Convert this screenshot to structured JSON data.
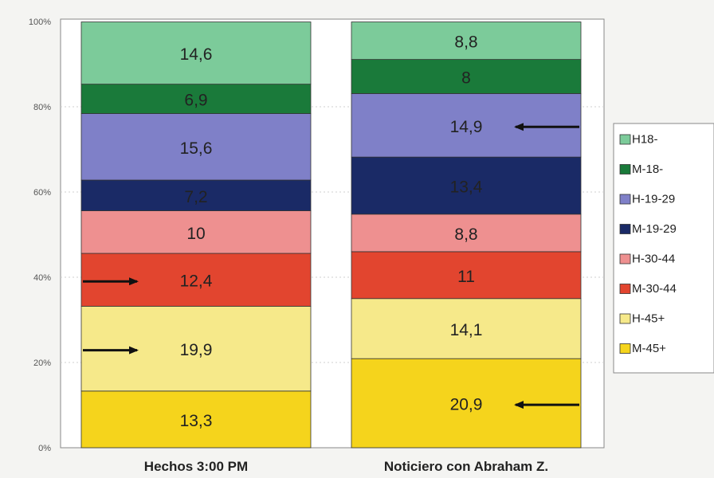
{
  "chart_data": {
    "type": "bar",
    "stacked": true,
    "percent": true,
    "categories": [
      "Hechos 3:00 PM",
      "Noticiero con Abraham Z."
    ],
    "ylim": [
      0,
      100
    ],
    "yticks": [
      "0%",
      "20%",
      "40%",
      "60%",
      "80%",
      "100%"
    ],
    "legend_position": "right",
    "series": [
      {
        "name": "M-45+",
        "color": "#f5d41c",
        "values": [
          13.3,
          20.9
        ],
        "labels": [
          "13,3",
          "20,9"
        ]
      },
      {
        "name": "H-45+",
        "color": "#f6e98a",
        "values": [
          19.9,
          14.1
        ],
        "labels": [
          "19,9",
          "14,1"
        ]
      },
      {
        "name": "M-30-44",
        "color": "#e2452f",
        "values": [
          12.4,
          11
        ],
        "labels": [
          "12,4",
          "11"
        ]
      },
      {
        "name": "H-30-44",
        "color": "#ee9090",
        "values": [
          10,
          8.8
        ],
        "labels": [
          "10",
          "8,8"
        ]
      },
      {
        "name": "M-19-29",
        "color": "#1a2a66",
        "values": [
          7.2,
          13.4
        ],
        "labels": [
          "7,2",
          "13,4"
        ]
      },
      {
        "name": "H-19-29",
        "color": "#7f80c8",
        "values": [
          15.6,
          14.9
        ],
        "labels": [
          "15,6",
          "14,9"
        ]
      },
      {
        "name": "M-18-",
        "color": "#1a7a3a",
        "values": [
          6.9,
          8
        ],
        "labels": [
          "6,9",
          "8"
        ]
      },
      {
        "name": "H18-",
        "color": "#7ccb9a",
        "values": [
          14.6,
          8.8
        ],
        "labels": [
          "14,6",
          "8,8"
        ]
      }
    ],
    "legend_order": [
      "H18-",
      "M-18-",
      "H-19-29",
      "M-19-29",
      "H-30-44",
      "M-30-44",
      "H-45+",
      "M-45+"
    ],
    "annotations": [
      {
        "type": "arrow",
        "category": 0,
        "series": "M-30-44",
        "side": "left",
        "direction": "right"
      },
      {
        "type": "arrow",
        "category": 0,
        "series": "H-45+",
        "side": "left",
        "direction": "right"
      },
      {
        "type": "arrow",
        "category": 1,
        "series": "H-19-29",
        "side": "right",
        "direction": "left"
      },
      {
        "type": "arrow",
        "category": 1,
        "series": "M-45+",
        "side": "right",
        "direction": "left"
      }
    ]
  }
}
